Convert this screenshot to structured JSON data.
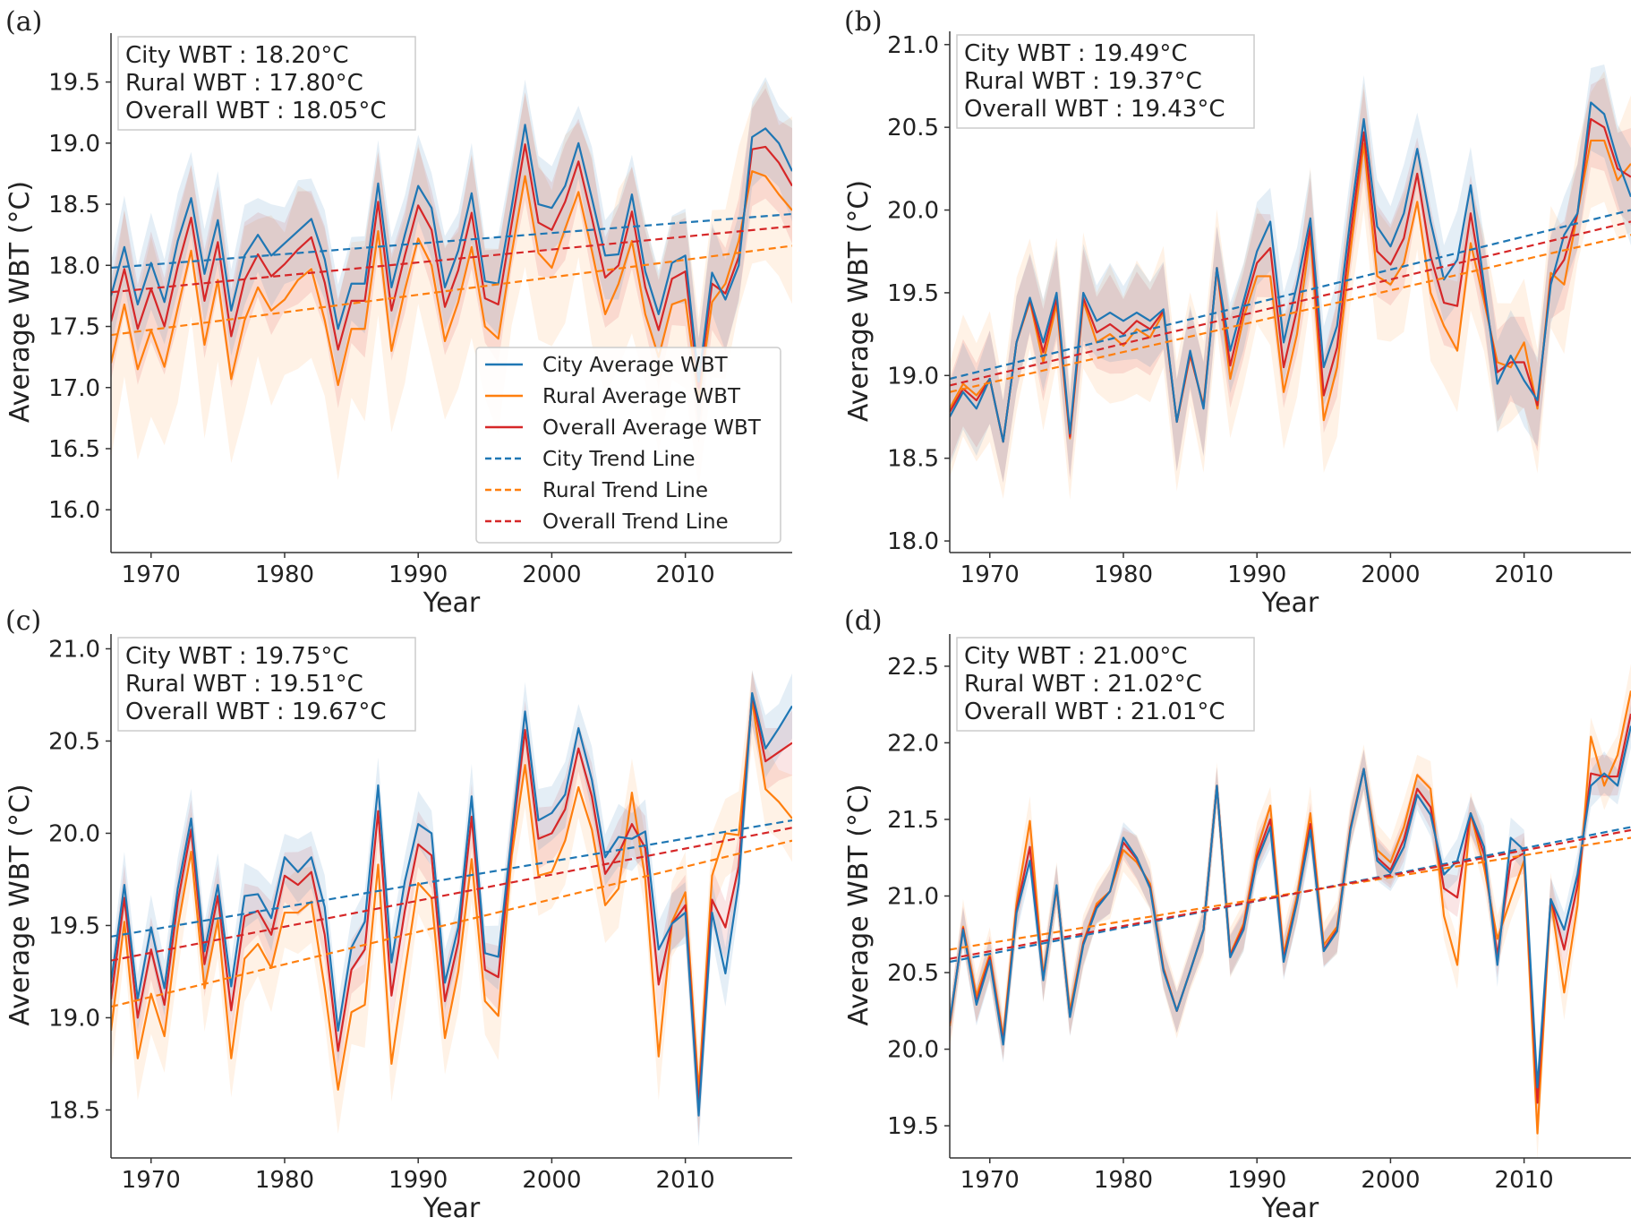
{
  "colors": {
    "city": "#1f77b4",
    "rural": "#ff7f0e",
    "overall": "#d62728"
  },
  "legend": {
    "placement": "lower-right of panel (a)",
    "entries": [
      {
        "label": "City Average WBT",
        "series": "city",
        "style": "solid"
      },
      {
        "label": "Rural Average WBT",
        "series": "rural",
        "style": "solid"
      },
      {
        "label": "Overall Average WBT",
        "series": "overall",
        "style": "solid"
      },
      {
        "label": "City Trend Line",
        "series": "city",
        "style": "dashed"
      },
      {
        "label": "Rural Trend Line",
        "series": "rural",
        "style": "dashed"
      },
      {
        "label": "Overall Trend Line",
        "series": "overall",
        "style": "dashed"
      }
    ]
  },
  "chart_data": [
    {
      "type": "line",
      "panel_label": "(a)",
      "xlabel": "Year",
      "ylabel": "Average WBT (°C)",
      "xlim": [
        1967,
        2018
      ],
      "ylim": [
        15.65,
        19.9
      ],
      "xticks": [
        1970,
        1980,
        1990,
        2000,
        2010
      ],
      "yticks": [
        "16.0",
        "16.5",
        "17.0",
        "17.5",
        "18.0",
        "18.5",
        "19.0",
        "19.5"
      ],
      "stats": [
        "City WBT : 18.20°C",
        "Rural WBT : 17.80°C",
        "Overall WBT : 18.05°C"
      ],
      "x_start": 1967,
      "series": [
        {
          "name": "city",
          "ci": 0.35,
          "trend": [
            17.98,
            18.42
          ],
          "values": [
            17.75,
            18.15,
            17.68,
            18.02,
            17.7,
            18.2,
            18.55,
            17.93,
            18.37,
            17.63,
            18.08,
            18.25,
            18.08,
            18.18,
            18.28,
            18.38,
            18.05,
            17.48,
            17.85,
            17.85,
            18.67,
            17.82,
            18.25,
            18.65,
            18.47,
            17.82,
            18.12,
            18.59,
            17.87,
            17.85,
            18.48,
            19.15,
            18.5,
            18.47,
            18.65,
            19.0,
            18.55,
            18.08,
            18.09,
            18.58,
            17.95,
            17.6,
            18.02,
            18.08,
            17.05,
            17.94,
            17.72,
            18.0,
            19.05,
            19.12,
            19.0,
            18.77
          ]
        },
        {
          "name": "rural",
          "ci": 0.65,
          "trend": [
            17.43,
            18.16
          ],
          "values": [
            17.2,
            17.68,
            17.15,
            17.47,
            17.17,
            17.65,
            18.12,
            17.35,
            17.88,
            17.07,
            17.55,
            17.82,
            17.63,
            17.72,
            17.88,
            17.97,
            17.55,
            17.02,
            17.48,
            17.48,
            18.28,
            17.3,
            17.8,
            18.22,
            18.0,
            17.38,
            17.7,
            18.15,
            17.5,
            17.4,
            18.1,
            18.73,
            18.1,
            17.98,
            18.3,
            18.6,
            18.12,
            17.6,
            17.85,
            18.2,
            17.6,
            17.25,
            17.68,
            17.72,
            16.9,
            17.7,
            17.85,
            18.2,
            18.77,
            18.73,
            18.58,
            18.45
          ]
        },
        {
          "name": "overall",
          "ci": 0.4,
          "trend": [
            17.78,
            18.32
          ],
          "values": [
            17.54,
            17.97,
            17.48,
            17.81,
            17.5,
            17.99,
            18.39,
            17.71,
            18.19,
            17.42,
            17.88,
            18.09,
            17.91,
            18.01,
            18.13,
            18.23,
            17.86,
            17.31,
            17.71,
            17.71,
            18.52,
            17.63,
            18.08,
            18.49,
            18.29,
            17.66,
            17.96,
            18.43,
            17.73,
            17.68,
            18.34,
            18.99,
            18.35,
            18.29,
            18.52,
            18.85,
            18.39,
            17.9,
            18.0,
            18.44,
            17.82,
            17.47,
            17.89,
            17.95,
            16.99,
            17.85,
            17.77,
            18.07,
            18.95,
            18.97,
            18.84,
            18.65
          ]
        }
      ]
    },
    {
      "type": "line",
      "panel_label": "(b)",
      "xlabel": "Year",
      "ylabel": "Average WBT (°C)",
      "xlim": [
        1967,
        2018
      ],
      "ylim": [
        17.93,
        21.08
      ],
      "xticks": [
        1970,
        1980,
        1990,
        2000,
        2010
      ],
      "yticks": [
        "18.0",
        "18.5",
        "19.0",
        "19.5",
        "20.0",
        "20.5",
        "21.0"
      ],
      "stats": [
        "City WBT : 19.49°C",
        "Rural WBT : 19.37°C",
        "Overall WBT : 19.43°C"
      ],
      "x_start": 1967,
      "series": [
        {
          "name": "city",
          "ci": 0.25,
          "trend": [
            18.98,
            20.0
          ],
          "values": [
            18.75,
            18.9,
            18.8,
            18.98,
            18.6,
            19.2,
            19.47,
            19.2,
            19.5,
            18.65,
            19.5,
            19.33,
            19.38,
            19.33,
            19.38,
            19.33,
            19.4,
            18.72,
            19.15,
            18.8,
            19.65,
            19.15,
            19.45,
            19.75,
            19.93,
            19.2,
            19.55,
            19.95,
            19.05,
            19.3,
            19.95,
            20.55,
            19.9,
            19.78,
            19.98,
            20.37,
            19.93,
            19.58,
            19.7,
            20.15,
            19.55,
            18.95,
            19.12,
            18.97,
            18.85,
            19.55,
            19.85,
            19.98,
            20.65,
            20.58,
            20.3,
            20.08
          ]
        },
        {
          "name": "rural",
          "ci": 0.35,
          "trend": [
            18.9,
            19.85
          ],
          "values": [
            18.8,
            18.95,
            18.88,
            18.98,
            18.6,
            19.2,
            19.45,
            19.08,
            19.43,
            18.62,
            19.45,
            19.2,
            19.25,
            19.18,
            19.28,
            19.23,
            19.38,
            18.72,
            19.12,
            18.82,
            19.65,
            18.98,
            19.35,
            19.6,
            19.6,
            18.9,
            19.25,
            19.85,
            18.73,
            19.05,
            19.75,
            20.4,
            19.6,
            19.55,
            19.68,
            20.05,
            19.5,
            19.3,
            19.15,
            19.8,
            19.45,
            19.08,
            19.05,
            19.2,
            18.8,
            19.62,
            19.55,
            19.98,
            20.42,
            20.42,
            20.18,
            20.28
          ]
        },
        {
          "name": "overall",
          "ci": 0.25,
          "trend": [
            18.94,
            19.93
          ],
          "values": [
            18.78,
            18.92,
            18.85,
            18.98,
            18.6,
            19.2,
            19.46,
            19.14,
            19.47,
            18.63,
            19.47,
            19.26,
            19.31,
            19.25,
            19.33,
            19.28,
            19.39,
            18.72,
            19.13,
            18.81,
            19.65,
            19.06,
            19.4,
            19.68,
            19.77,
            19.05,
            19.4,
            19.9,
            18.88,
            19.17,
            19.85,
            20.47,
            19.75,
            19.67,
            19.83,
            20.22,
            19.72,
            19.44,
            19.42,
            19.98,
            19.5,
            19.02,
            19.08,
            19.08,
            18.82,
            19.58,
            19.7,
            19.98,
            20.55,
            20.5,
            20.25,
            20.2
          ]
        }
      ]
    },
    {
      "type": "line",
      "panel_label": "(c)",
      "xlabel": "Year",
      "ylabel": "Average WBT (°C)",
      "xlim": [
        1967,
        2018
      ],
      "ylim": [
        18.24,
        21.08
      ],
      "xticks": [
        1970,
        1980,
        1990,
        2000,
        2010
      ],
      "yticks": [
        "18.5",
        "19.0",
        "19.5",
        "20.0",
        "20.5",
        "21.0"
      ],
      "stats": [
        "City WBT : 19.75°C",
        "Rural WBT : 19.51°C",
        "Overall WBT : 19.67°C"
      ],
      "x_start": 1967,
      "series": [
        {
          "name": "city",
          "ci": 0.15,
          "trend": [
            19.44,
            20.07
          ],
          "values": [
            19.19,
            19.72,
            19.1,
            19.49,
            19.16,
            19.7,
            20.08,
            19.36,
            19.72,
            19.17,
            19.66,
            19.67,
            19.54,
            19.87,
            19.79,
            19.87,
            19.6,
            18.93,
            19.38,
            19.52,
            20.26,
            19.3,
            19.74,
            20.05,
            20.0,
            19.19,
            19.49,
            20.2,
            19.35,
            19.33,
            19.99,
            20.66,
            20.07,
            20.11,
            20.21,
            20.57,
            20.29,
            19.87,
            19.98,
            19.97,
            20.01,
            19.37,
            19.51,
            19.57,
            18.47,
            19.57,
            19.24,
            19.73,
            20.76,
            20.46,
            20.57,
            20.69
          ]
        },
        {
          "name": "rural",
          "ci": 0.2,
          "trend": [
            19.06,
            19.96
          ],
          "values": [
            18.93,
            19.52,
            18.78,
            19.13,
            18.9,
            19.49,
            19.9,
            19.16,
            19.53,
            18.78,
            19.32,
            19.4,
            19.27,
            19.57,
            19.57,
            19.63,
            19.16,
            18.61,
            19.03,
            19.07,
            19.83,
            18.75,
            19.25,
            19.73,
            19.65,
            18.89,
            19.25,
            19.86,
            19.09,
            19.01,
            19.88,
            20.37,
            19.77,
            19.79,
            19.96,
            20.25,
            20.02,
            19.61,
            19.7,
            20.22,
            19.75,
            18.79,
            19.52,
            19.68,
            18.6,
            19.77,
            20.0,
            19.99,
            20.72,
            20.24,
            20.17,
            20.08
          ]
        },
        {
          "name": "overall",
          "ci": 0.15,
          "trend": [
            19.31,
            20.03
          ],
          "values": [
            19.1,
            19.65,
            19.0,
            19.37,
            19.07,
            19.63,
            20.02,
            19.29,
            19.66,
            19.04,
            19.55,
            19.58,
            19.45,
            19.77,
            19.72,
            19.79,
            19.45,
            18.82,
            19.26,
            19.37,
            20.12,
            19.12,
            19.58,
            19.94,
            19.88,
            19.09,
            19.41,
            20.09,
            19.26,
            19.22,
            19.95,
            20.56,
            19.97,
            20.0,
            20.13,
            20.46,
            20.2,
            19.78,
            19.89,
            20.05,
            19.92,
            19.18,
            19.51,
            19.61,
            18.52,
            19.64,
            19.49,
            19.82,
            20.75,
            20.39,
            20.44,
            20.49
          ]
        }
      ]
    },
    {
      "type": "line",
      "panel_label": "(d)",
      "xlabel": "Year",
      "ylabel": "Average WBT (°C)",
      "xlim": [
        1967,
        2018
      ],
      "ylim": [
        19.29,
        22.71
      ],
      "xticks": [
        1970,
        1980,
        1990,
        2000,
        2010
      ],
      "yticks": [
        "19.5",
        "20.0",
        "20.5",
        "21.0",
        "21.5",
        "22.0",
        "22.5"
      ],
      "stats": [
        "City WBT : 21.00°C",
        "Rural WBT : 21.02°C",
        "Overall WBT : 21.01°C"
      ],
      "x_start": 1967,
      "series": [
        {
          "name": "city",
          "ci": 0.12,
          "trend": [
            20.57,
            21.45
          ],
          "values": [
            20.18,
            20.78,
            20.29,
            20.58,
            20.03,
            20.89,
            21.23,
            20.45,
            21.07,
            20.21,
            20.68,
            20.92,
            21.03,
            21.38,
            21.25,
            21.05,
            20.51,
            20.25,
            20.51,
            20.78,
            21.72,
            20.6,
            20.78,
            21.23,
            21.45,
            20.57,
            20.96,
            21.43,
            20.64,
            20.77,
            21.43,
            21.83,
            21.23,
            21.15,
            21.32,
            21.66,
            21.53,
            21.14,
            21.23,
            21.54,
            21.32,
            20.55,
            21.38,
            21.3,
            19.75,
            20.98,
            20.78,
            21.14,
            21.72,
            21.8,
            21.72,
            22.11
          ]
        },
        {
          "name": "rural",
          "ci": 0.15,
          "trend": [
            20.65,
            21.38
          ],
          "values": [
            20.15,
            20.8,
            20.35,
            20.62,
            20.08,
            20.95,
            21.49,
            20.48,
            21.05,
            20.25,
            20.7,
            20.95,
            21.03,
            21.3,
            21.22,
            21.08,
            20.53,
            20.25,
            20.51,
            20.78,
            21.72,
            20.62,
            20.82,
            21.3,
            21.59,
            20.62,
            21.0,
            21.54,
            20.68,
            20.8,
            21.45,
            21.83,
            21.3,
            21.22,
            21.45,
            21.79,
            21.7,
            20.87,
            20.55,
            21.54,
            21.19,
            20.72,
            20.98,
            21.23,
            19.45,
            20.98,
            20.37,
            20.94,
            22.04,
            21.72,
            21.92,
            22.34
          ]
        },
        {
          "name": "overall",
          "ci": 0.12,
          "trend": [
            20.59,
            21.43
          ],
          "values": [
            20.17,
            20.79,
            20.31,
            20.6,
            20.05,
            20.91,
            21.32,
            20.46,
            21.06,
            20.22,
            20.69,
            20.93,
            21.03,
            21.35,
            21.24,
            21.06,
            20.52,
            20.25,
            20.51,
            20.78,
            21.72,
            20.61,
            20.8,
            21.26,
            21.5,
            20.59,
            20.97,
            21.47,
            20.65,
            20.78,
            21.44,
            21.83,
            21.25,
            21.17,
            21.37,
            21.7,
            21.58,
            21.05,
            20.99,
            21.54,
            21.27,
            20.61,
            21.23,
            21.28,
            19.65,
            20.98,
            20.65,
            21.07,
            21.8,
            21.78,
            21.78,
            22.19
          ]
        }
      ]
    }
  ]
}
